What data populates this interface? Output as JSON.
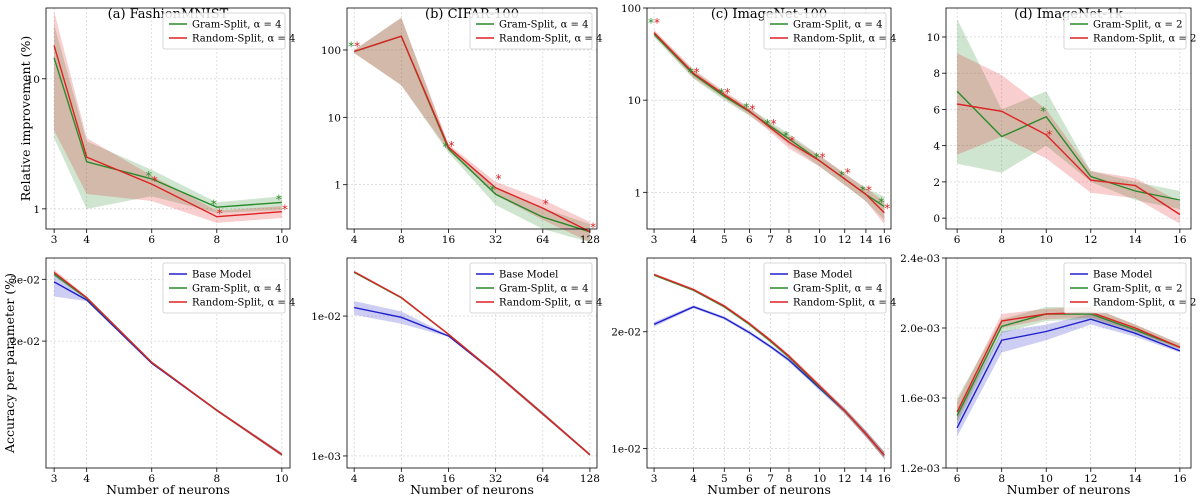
{
  "figure": {
    "shared_xlabel": "Number of neurons",
    "row_ylabels": [
      "Relative improvement (%)",
      "Accuracy per parameter (%)"
    ]
  },
  "colors": {
    "base": "#2020cc",
    "gram": "#2a8a2a",
    "random": "#dd2222"
  },
  "chart_data": [
    {
      "id": "a-top",
      "type": "line",
      "title": "(a) FashionMNIST",
      "xlabel": "",
      "ylabel": "Relative improvement (%)",
      "xscale": "linear",
      "yscale": "log",
      "xlim": [
        2.75,
        10.25
      ],
      "ylim": [
        0.7,
        35
      ],
      "xticks": [
        3,
        4,
        6,
        8,
        10
      ],
      "xticklabels": [
        "3",
        "4",
        "6",
        "8",
        "10"
      ],
      "yticks": [
        1,
        10
      ],
      "yticklabels": [
        "1",
        "10"
      ],
      "grid": true,
      "legend_position": "top-right",
      "x": [
        3,
        4,
        6,
        8,
        10
      ],
      "series": [
        {
          "name": "Gram-Split, α = 4",
          "color_key": "gram",
          "values": [
            14.5,
            2.3,
            1.7,
            1.03,
            1.12
          ],
          "lower": [
            3.5,
            1.0,
            1.25,
            0.93,
            0.98
          ],
          "upper": [
            26,
            3.3,
            2.0,
            1.12,
            1.25
          ],
          "markers": [
            null,
            null,
            1.85,
            1.12,
            1.22
          ]
        },
        {
          "name": "Random-Split, α = 4",
          "color_key": "random",
          "values": [
            18,
            2.5,
            1.55,
            0.87,
            0.95
          ],
          "lower": [
            4.0,
            1.3,
            1.15,
            0.78,
            0.85
          ],
          "upper": [
            33,
            3.5,
            1.8,
            0.97,
            1.05
          ],
          "markers": [
            null,
            null,
            1.7,
            0.95,
            1.02
          ]
        }
      ]
    },
    {
      "id": "b-top",
      "type": "line",
      "title": "(b) CIFAR-100",
      "xlabel": "",
      "ylabel": "",
      "xscale": "log",
      "yscale": "log",
      "xlim": [
        3.6,
        142
      ],
      "ylim": [
        0.22,
        420
      ],
      "xticks": [
        4,
        8,
        16,
        32,
        64,
        128
      ],
      "xticklabels": [
        "4",
        "8",
        "16",
        "32",
        "64",
        "128"
      ],
      "yticks": [
        1,
        10,
        100
      ],
      "yticklabels": [
        "1",
        "10",
        "100"
      ],
      "grid": true,
      "legend_position": "top-right",
      "x": [
        4,
        8,
        16,
        32,
        64,
        128
      ],
      "series": [
        {
          "name": "Gram-Split, α = 4",
          "color_key": "gram",
          "values": [
            95,
            160,
            3.4,
            0.72,
            0.33,
            0.2
          ],
          "lower": [
            90,
            30,
            3.0,
            0.5,
            0.22,
            0.14
          ],
          "upper": [
            100,
            300,
            3.8,
            0.9,
            0.45,
            0.26
          ],
          "markers": [
            120,
            null,
            3.9,
            0.9,
            null,
            null
          ]
        },
        {
          "name": "Random-Split, α = 4",
          "color_key": "random",
          "values": [
            95,
            160,
            3.6,
            0.9,
            0.45,
            0.2
          ],
          "lower": [
            90,
            30,
            3.2,
            0.7,
            0.3,
            0.14
          ],
          "upper": [
            100,
            300,
            4.0,
            1.1,
            0.6,
            0.28
          ],
          "markers": [
            120,
            null,
            4.0,
            1.3,
            0.55,
            0.25
          ]
        }
      ]
    },
    {
      "id": "c-top",
      "type": "line",
      "title": "(c) ImageNet-100",
      "xlabel": "",
      "ylabel": "",
      "xscale": "log",
      "yscale": "log",
      "xlim": [
        2.85,
        16.8
      ],
      "ylim": [
        0.4,
        100
      ],
      "xticks": [
        3,
        4,
        5,
        6,
        7,
        8,
        10,
        12,
        14,
        16
      ],
      "xticklabels": [
        "3",
        "4",
        "5",
        "6",
        "7",
        "8",
        "10",
        "12",
        "14",
        "16"
      ],
      "yticks": [
        1,
        10,
        100
      ],
      "yticklabels": [
        "1",
        "10",
        "100"
      ],
      "grid": true,
      "legend_position": "top-right",
      "x": [
        3,
        4,
        5,
        6,
        7,
        8,
        10,
        12,
        14,
        16
      ],
      "series": [
        {
          "name": "Gram-Split, α = 4",
          "color_key": "gram",
          "values": [
            52,
            19,
            11,
            7.5,
            5.2,
            3.8,
            2.2,
            1.4,
            0.95,
            0.7
          ],
          "lower": [
            48,
            17,
            10,
            6.8,
            4.7,
            3.3,
            1.9,
            1.2,
            0.8,
            0.5
          ],
          "upper": [
            56,
            21,
            12,
            8.2,
            5.8,
            4.3,
            2.5,
            1.6,
            1.1,
            0.9
          ],
          "markers": [
            72,
            21,
            12.5,
            8.8,
            5.8,
            4.3,
            2.5,
            1.6,
            1.1,
            0.82
          ]
        },
        {
          "name": "Random-Split, α = 4",
          "color_key": "random",
          "values": [
            54,
            19.5,
            11.5,
            7.6,
            5.0,
            3.5,
            2.2,
            1.4,
            0.95,
            0.6
          ],
          "lower": [
            50,
            17.5,
            10.5,
            6.9,
            4.5,
            3.0,
            1.9,
            1.2,
            0.8,
            0.45
          ],
          "upper": [
            58,
            21.5,
            12.5,
            8.3,
            5.5,
            4.0,
            2.5,
            1.6,
            1.1,
            0.8
          ],
          "markers": [
            72,
            21,
            12.5,
            8.3,
            5.8,
            3.8,
            2.5,
            1.7,
            1.1,
            0.7
          ]
        }
      ]
    },
    {
      "id": "d-top",
      "type": "line",
      "title": "(d) ImageNet-1k",
      "xlabel": "",
      "ylabel": "",
      "xscale": "linear",
      "yscale": "linear",
      "xlim": [
        5.5,
        16.5
      ],
      "ylim": [
        -0.6,
        11.6
      ],
      "xticks": [
        6,
        8,
        10,
        12,
        14,
        16
      ],
      "xticklabels": [
        "6",
        "8",
        "10",
        "12",
        "14",
        "16"
      ],
      "yticks": [
        0,
        2,
        4,
        6,
        8,
        10
      ],
      "yticklabels": [
        "0",
        "2",
        "4",
        "6",
        "8",
        "10"
      ],
      "grid": true,
      "legend_position": "top-right",
      "x": [
        6,
        8,
        10,
        12,
        14,
        16
      ],
      "series": [
        {
          "name": "Gram-Split, α = 2",
          "color_key": "gram",
          "values": [
            7.0,
            4.5,
            5.6,
            2.3,
            1.5,
            1.0
          ],
          "lower": [
            3.0,
            2.5,
            4.0,
            2.0,
            1.0,
            0.5
          ],
          "upper": [
            11.0,
            6.0,
            7.0,
            2.6,
            2.0,
            1.5
          ],
          "markers": [
            null,
            null,
            6.0,
            null,
            null,
            null
          ]
        },
        {
          "name": "Random-Split, α = 2",
          "color_key": "random",
          "values": [
            6.3,
            5.9,
            4.6,
            2.1,
            1.8,
            0.2
          ],
          "lower": [
            3.5,
            4.5,
            3.3,
            1.4,
            1.1,
            -0.3
          ],
          "upper": [
            9.1,
            7.9,
            6.0,
            2.6,
            2.2,
            0.9
          ],
          "markers": [
            null,
            null,
            4.7,
            null,
            null,
            null
          ]
        }
      ]
    },
    {
      "id": "a-bot",
      "type": "line",
      "title": "",
      "xlabel": "Number of neurons",
      "ylabel": "Accuracy per parameter (%)",
      "xscale": "linear",
      "yscale": "log",
      "xlim": [
        2.75,
        10.25
      ],
      "ylim": [
        0.0087,
        0.0345
      ],
      "xticks": [
        3,
        4,
        6,
        8,
        10
      ],
      "xticklabels": [
        "3",
        "4",
        "6",
        "8",
        "10"
      ],
      "yticks": [
        0.02,
        0.03
      ],
      "yticklabels": [
        "2e-02",
        "3e-02"
      ],
      "grid": true,
      "legend_position": "top-right",
      "x": [
        3,
        4,
        6,
        8,
        10
      ],
      "series": [
        {
          "name": "Base Model",
          "color_key": "base",
          "values": [
            0.0295,
            0.0262,
            0.0173,
            0.0127,
            0.0095
          ],
          "lower": [
            0.0268,
            0.026,
            0.0172,
            0.0126,
            0.0094
          ],
          "upper": [
            0.0315,
            0.0264,
            0.0174,
            0.0128,
            0.0096
          ],
          "markers": []
        },
        {
          "name": "Gram-Split, α = 4",
          "color_key": "gram",
          "values": [
            0.031,
            0.0265,
            0.0174,
            0.0127,
            0.0095
          ],
          "lower": [
            0.0305,
            0.0263,
            0.0173,
            0.0126,
            0.0094
          ],
          "upper": [
            0.0316,
            0.0267,
            0.0175,
            0.0128,
            0.0096
          ],
          "markers": []
        },
        {
          "name": "Random-Split, α = 4",
          "color_key": "random",
          "values": [
            0.0314,
            0.0266,
            0.0174,
            0.0127,
            0.0095
          ],
          "lower": [
            0.031,
            0.0264,
            0.0173,
            0.0126,
            0.0094
          ],
          "upper": [
            0.032,
            0.0268,
            0.0175,
            0.0128,
            0.0096
          ],
          "markers": []
        }
      ]
    },
    {
      "id": "b-bot",
      "type": "line",
      "title": "",
      "xlabel": "Number of neurons",
      "ylabel": "",
      "xscale": "log",
      "yscale": "log",
      "xlim": [
        3.6,
        142
      ],
      "ylim": [
        0.00082,
        0.026
      ],
      "xticks": [
        4,
        8,
        16,
        32,
        64,
        128
      ],
      "xticklabels": [
        "4",
        "8",
        "16",
        "32",
        "64",
        "128"
      ],
      "yticks": [
        0.001,
        0.01
      ],
      "yticklabels": [
        "1e-03",
        "1e-02"
      ],
      "grid": true,
      "legend_position": "top-right",
      "x": [
        4,
        8,
        16,
        32,
        64,
        128
      ],
      "series": [
        {
          "name": "Base Model",
          "color_key": "base",
          "values": [
            0.0115,
            0.0098,
            0.0072,
            0.0039,
            0.002,
            0.00102
          ],
          "lower": [
            0.0102,
            0.0088,
            0.0071,
            0.0038,
            0.00195,
            0.001
          ],
          "upper": [
            0.0128,
            0.0108,
            0.0073,
            0.004,
            0.00205,
            0.00104
          ],
          "markers": []
        },
        {
          "name": "Gram-Split, α = 4",
          "color_key": "gram",
          "values": [
            0.0205,
            0.0135,
            0.0074,
            0.0039,
            0.002,
            0.00102
          ],
          "lower": [
            0.0203,
            0.0133,
            0.0073,
            0.0038,
            0.00195,
            0.001
          ],
          "upper": [
            0.0207,
            0.0137,
            0.0075,
            0.004,
            0.00205,
            0.00104
          ],
          "markers": []
        },
        {
          "name": "Random-Split, α = 4",
          "color_key": "random",
          "values": [
            0.0207,
            0.0136,
            0.0074,
            0.0039,
            0.002,
            0.00102
          ],
          "lower": [
            0.0205,
            0.0134,
            0.0073,
            0.0038,
            0.00195,
            0.001
          ],
          "upper": [
            0.0209,
            0.0138,
            0.0075,
            0.004,
            0.00205,
            0.00104
          ],
          "markers": []
        }
      ]
    },
    {
      "id": "c-bot",
      "type": "line",
      "title": "",
      "xlabel": "Number of neurons",
      "ylabel": "",
      "xscale": "log",
      "yscale": "log",
      "xlim": [
        2.85,
        16.8
      ],
      "ylim": [
        0.0089,
        0.031
      ],
      "xticks": [
        3,
        4,
        5,
        6,
        7,
        8,
        10,
        12,
        14,
        16
      ],
      "xticklabels": [
        "3",
        "4",
        "5",
        "6",
        "7",
        "8",
        "10",
        "12",
        "14",
        "16"
      ],
      "yticks": [
        0.01,
        0.02
      ],
      "yticklabels": [
        "1e-02",
        "2e-02"
      ],
      "grid": true,
      "legend_position": "top-right",
      "x": [
        3,
        4,
        5,
        6,
        7,
        8,
        10,
        12,
        14,
        16
      ],
      "series": [
        {
          "name": "Base Model",
          "color_key": "base",
          "values": [
            0.0209,
            0.0232,
            0.0217,
            0.0199,
            0.0183,
            0.0169,
            0.0143,
            0.0125,
            0.0109,
            0.0096
          ],
          "lower": [
            0.0206,
            0.023,
            0.0215,
            0.0197,
            0.0181,
            0.0167,
            0.0141,
            0.0123,
            0.0107,
            0.0094
          ],
          "upper": [
            0.0212,
            0.0234,
            0.0219,
            0.0201,
            0.0185,
            0.0171,
            0.0145,
            0.0127,
            0.0111,
            0.0098
          ],
          "markers": []
        },
        {
          "name": "Gram-Split, α = 4",
          "color_key": "gram",
          "values": [
            0.028,
            0.0256,
            0.0232,
            0.0209,
            0.0189,
            0.0172,
            0.0144,
            0.0125,
            0.0109,
            0.0096
          ],
          "lower": [
            0.0278,
            0.0254,
            0.023,
            0.0207,
            0.0187,
            0.017,
            0.0142,
            0.0123,
            0.0107,
            0.0094
          ],
          "upper": [
            0.0282,
            0.0258,
            0.0234,
            0.0211,
            0.0191,
            0.0174,
            0.0146,
            0.0127,
            0.0111,
            0.0098
          ],
          "markers": []
        },
        {
          "name": "Random-Split, α = 4",
          "color_key": "random",
          "values": [
            0.0281,
            0.0257,
            0.0233,
            0.021,
            0.019,
            0.0173,
            0.0145,
            0.0125,
            0.0109,
            0.0096
          ],
          "lower": [
            0.0279,
            0.0255,
            0.0231,
            0.0208,
            0.0188,
            0.0171,
            0.0143,
            0.0123,
            0.0107,
            0.0094
          ],
          "upper": [
            0.0283,
            0.0259,
            0.0235,
            0.0212,
            0.0192,
            0.0175,
            0.0147,
            0.0127,
            0.0111,
            0.0098
          ],
          "markers": []
        }
      ]
    },
    {
      "id": "d-bot",
      "type": "line",
      "title": "",
      "xlabel": "Number of neurons",
      "ylabel": "",
      "xscale": "linear",
      "yscale": "linear",
      "xlim": [
        5.5,
        16.5
      ],
      "ylim": [
        0.0012,
        0.0024
      ],
      "xticks": [
        6,
        8,
        10,
        12,
        14,
        16
      ],
      "xticklabels": [
        "6",
        "8",
        "10",
        "12",
        "14",
        "16"
      ],
      "yticks": [
        0.0012,
        0.0016,
        0.002,
        0.0024
      ],
      "yticklabels": [
        "1.2e-03",
        "1.6e-03",
        "2.0e-03",
        "2.4e-03"
      ],
      "grid": true,
      "legend_position": "top-right",
      "x": [
        6,
        8,
        10,
        12,
        14,
        16
      ],
      "series": [
        {
          "name": "Base Model",
          "color_key": "base",
          "values": [
            0.00143,
            0.00193,
            0.00198,
            0.00205,
            0.00197,
            0.00187
          ],
          "lower": [
            0.00138,
            0.00186,
            0.00193,
            0.00202,
            0.00195,
            0.00186
          ],
          "upper": [
            0.0015,
            0.00198,
            0.00202,
            0.00208,
            0.00199,
            0.00188
          ],
          "markers": []
        },
        {
          "name": "Gram-Split, α = 2",
          "color_key": "gram",
          "values": [
            0.0015,
            0.00201,
            0.00208,
            0.00208,
            0.00199,
            0.00189
          ],
          "lower": [
            0.00145,
            0.00197,
            0.00204,
            0.00205,
            0.00197,
            0.00188
          ],
          "upper": [
            0.0016,
            0.00205,
            0.00212,
            0.00212,
            0.00202,
            0.00191
          ],
          "markers": []
        },
        {
          "name": "Random-Split, α = 2",
          "color_key": "random",
          "values": [
            0.00152,
            0.00204,
            0.00208,
            0.00209,
            0.002,
            0.00189
          ],
          "lower": [
            0.00147,
            0.002,
            0.00205,
            0.00206,
            0.00198,
            0.00188
          ],
          "upper": [
            0.00158,
            0.00208,
            0.00211,
            0.00212,
            0.00202,
            0.00191
          ],
          "markers": []
        }
      ]
    }
  ]
}
